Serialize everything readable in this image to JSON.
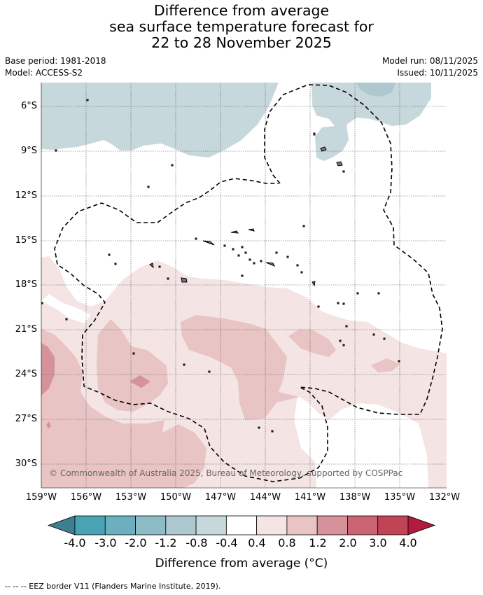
{
  "title": {
    "line1": "Difference from average",
    "line2": "sea surface temperature forecast for",
    "line3": "22 to 28 November 2025"
  },
  "meta": {
    "base_period": "Base period: 1981-2018",
    "model": "Model: ACCESS-S2",
    "model_run": "Model run: 08/11/2025",
    "issued": "Issued: 10/11/2025"
  },
  "map": {
    "lat_labels": [
      "6°S",
      "9°S",
      "12°S",
      "15°S",
      "18°S",
      "21°S",
      "24°S",
      "27°S",
      "30°S"
    ],
    "lon_labels": [
      "159°W",
      "156°W",
      "153°W",
      "150°W",
      "147°W",
      "144°W",
      "141°W",
      "138°W",
      "135°W",
      "132°W"
    ],
    "copyright": "© Commonwealth of Australia 2025, Bureau of Meteorology, supported by COSPPac"
  },
  "colorbar": {
    "tick_labels": [
      "-4.0",
      "-3.0",
      "-2.0",
      "-1.2",
      "-0.8",
      "-0.4",
      "0.4",
      "0.8",
      "1.2",
      "2.0",
      "3.0",
      "4.0"
    ],
    "colors": [
      "#3d7f8e",
      "#4aa3b5",
      "#6cb0bf",
      "#8dbcc7",
      "#adc8cf",
      "#c7d8dc",
      "#ffffff",
      "#f4e4e4",
      "#e8c4c4",
      "#d6929a",
      "#cb6472",
      "#c14456",
      "#b01b3e"
    ],
    "title": "Difference from average (°C)"
  },
  "footer": "-- -- -- EEZ border V11 (Flanders Marine Institute, 2019)."
}
